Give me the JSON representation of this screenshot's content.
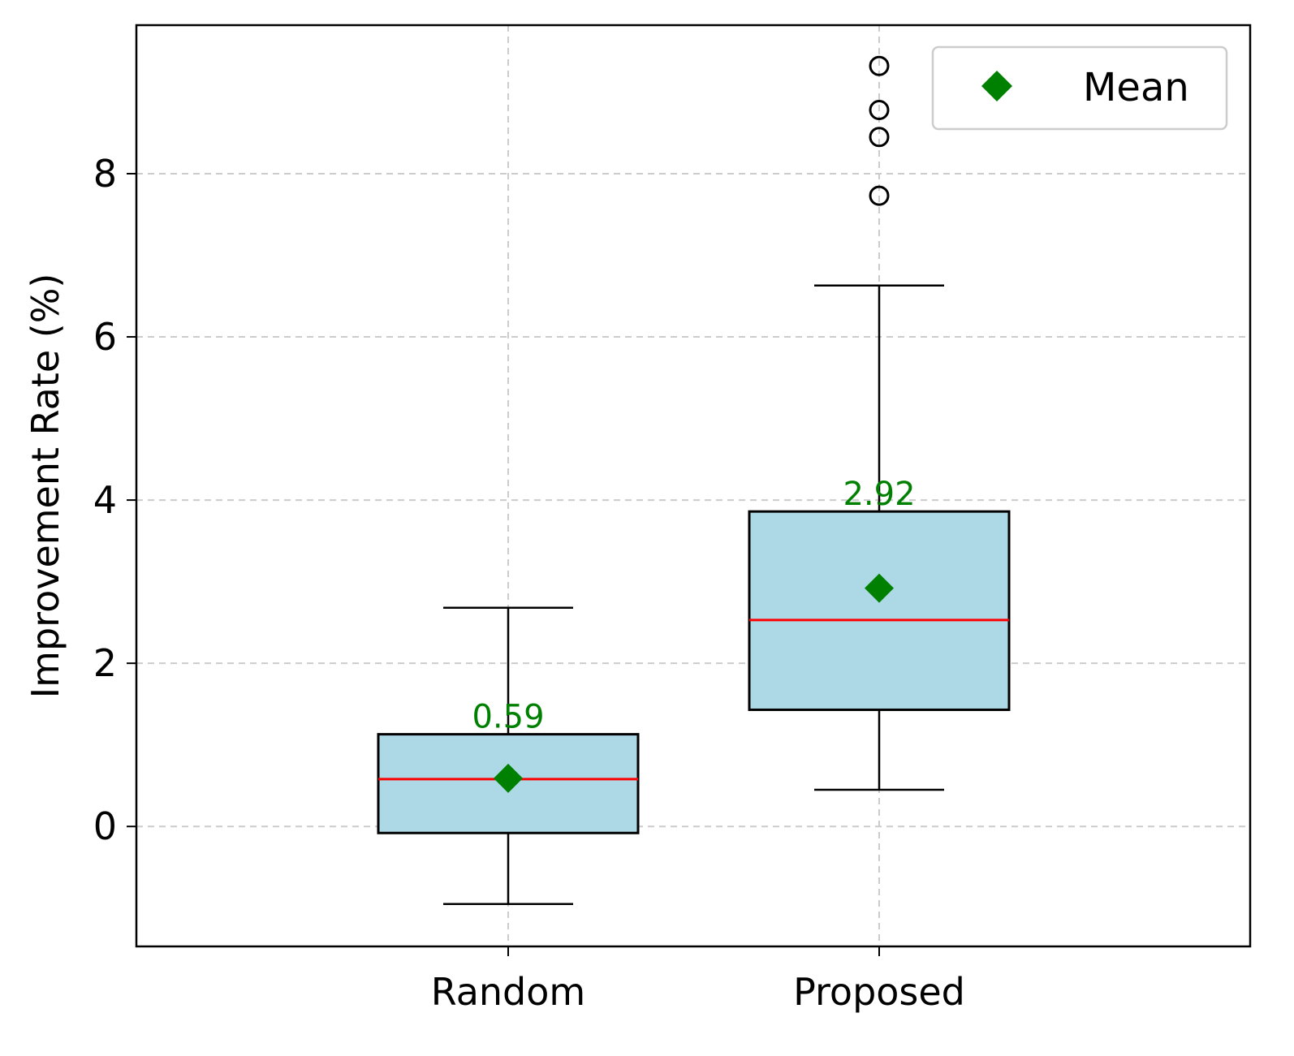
{
  "chart_data": {
    "type": "box",
    "categories": [
      "Random",
      "Proposed"
    ],
    "boxes": [
      {
        "category": "Random",
        "whisker_low": -0.95,
        "q1": -0.08,
        "median": 0.58,
        "q3": 1.13,
        "whisker_high": 2.68,
        "mean": 0.59,
        "mean_label": "0.59",
        "outliers": []
      },
      {
        "category": "Proposed",
        "whisker_low": 0.45,
        "q1": 1.43,
        "median": 2.53,
        "q3": 3.86,
        "whisker_high": 6.63,
        "mean": 2.92,
        "mean_label": "2.92",
        "outliers": [
          7.73,
          8.45,
          8.78,
          9.32
        ]
      }
    ],
    "xlabel": "",
    "ylabel": "Improvement Rate (%)",
    "ylim": [
      -1.47,
      9.82
    ],
    "yticks": [
      0,
      2,
      4,
      6,
      8
    ],
    "ytick_labels": [
      "0",
      "2",
      "4",
      "6",
      "8"
    ],
    "grid": true,
    "legend": {
      "placement": "top-right",
      "entries": [
        "Mean"
      ]
    },
    "colors": {
      "box_fill": "#add8e6",
      "median": "#ff0000",
      "mean": "#008000",
      "grid": "#cccccc",
      "frame": "#000000"
    }
  }
}
